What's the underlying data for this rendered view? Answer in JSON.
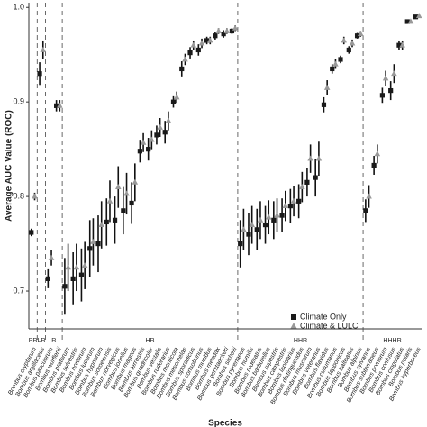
{
  "chart_data": {
    "type": "dot-error",
    "y_label": "Average AUC Value (ROC)",
    "x_label": "Species",
    "categories": [
      "Bombus cryptarum",
      "Bombus argillaceus",
      "Bombus pascuorum",
      "Bombus wurflenii",
      "Bombus pratorum",
      "Bombus sylvestris",
      "Bombus hortorum",
      "Bombus lucorum",
      "Bombus hypnorum",
      "Bombus soroeensis",
      "Bombus norvegicus",
      "Bombus jonellus",
      "Bombus magnus",
      "Bombus terrestris",
      "Bombus quadricolor",
      "Bombus vestalis",
      "Bombus ruderarius",
      "Bombus monticola",
      "Bombus mesomelas",
      "Bombus sporadicus",
      "Bombus consobrinus",
      "Bombus mucidus",
      "Bombus mendax",
      "Bombus gerstaeckeri",
      "Bombus sichelii",
      "Bombus pyrenaeus",
      "Bombus humilis",
      "Bombus ruderatus",
      "Bombus barbutellus",
      "Bombus rupestris",
      "Bombus campestris",
      "Bombus lapidarius",
      "Bombus distinguendus",
      "Bombus muscorum",
      "Bombus veteranus",
      "Bombus flavidus",
      "Bombus cullumanus",
      "Bombus lapponicus",
      "Bombus balteatus",
      "Bombus alpinus",
      "Bombus sylvanus",
      "Bombus subterraneus",
      "Bombus pomorum",
      "Bombus confusus",
      "Bombus cingulatus",
      "Bombus polaris",
      "Bombus hyperboreus"
    ],
    "groups": [
      {
        "name": "PR",
        "count": 1
      },
      {
        "name": "LR",
        "count": 1
      },
      {
        "name": "R",
        "count": 2
      },
      {
        "name": "HR",
        "count": 21
      },
      {
        "name": "HHR",
        "count": 15
      },
      {
        "name": "HHHR",
        "count": 7
      }
    ],
    "series": [
      {
        "name": "Climate Only",
        "marker": "square",
        "color": "#1a1a1a",
        "values": [
          0.762,
          0.93,
          0.713,
          0.896,
          0.705,
          0.713,
          0.717,
          0.745,
          0.75,
          0.773,
          0.775,
          0.785,
          0.793,
          0.848,
          0.85,
          0.865,
          0.868,
          0.9,
          0.935,
          0.952,
          0.955,
          0.965,
          0.97,
          0.972,
          0.975,
          0.75,
          0.76,
          0.765,
          0.77,
          0.775,
          0.78,
          0.79,
          0.795,
          0.815,
          0.82,
          0.897,
          0.935,
          0.945,
          0.955,
          0.97,
          0.785,
          0.833,
          0.907,
          0.912,
          0.96,
          0.985,
          0.99
        ],
        "errors": [
          0.004,
          0.012,
          0.01,
          0.006,
          0.03,
          0.028,
          0.028,
          0.03,
          0.03,
          0.025,
          0.025,
          0.025,
          0.022,
          0.012,
          0.012,
          0.01,
          0.012,
          0.006,
          0.008,
          0.006,
          0.006,
          0.004,
          0.004,
          0.004,
          0.003,
          0.025,
          0.022,
          0.022,
          0.02,
          0.02,
          0.018,
          0.018,
          0.018,
          0.015,
          0.02,
          0.008,
          0.005,
          0.004,
          0.004,
          0.003,
          0.012,
          0.01,
          0.008,
          0.01,
          0.005,
          0.002,
          0.002
        ]
      },
      {
        "name": "Climate & LULC",
        "marker": "triangle",
        "color": "#999999",
        "values": [
          0.8,
          0.955,
          0.735,
          0.896,
          0.725,
          0.725,
          0.727,
          0.752,
          0.77,
          0.795,
          0.81,
          0.803,
          0.815,
          0.857,
          0.86,
          0.873,
          0.88,
          0.905,
          0.945,
          0.96,
          0.962,
          0.965,
          0.975,
          0.975,
          0.978,
          0.765,
          0.77,
          0.775,
          0.778,
          0.78,
          0.79,
          0.795,
          0.81,
          0.84,
          0.84,
          0.915,
          0.94,
          0.965,
          0.962,
          0.972,
          0.8,
          0.845,
          0.925,
          0.93,
          0.96,
          0.985,
          0.991
        ],
        "errors": [
          0.004,
          0.01,
          0.008,
          0.006,
          0.025,
          0.025,
          0.025,
          0.025,
          0.025,
          0.022,
          0.022,
          0.022,
          0.02,
          0.01,
          0.01,
          0.01,
          0.01,
          0.006,
          0.006,
          0.005,
          0.005,
          0.004,
          0.003,
          0.003,
          0.003,
          0.022,
          0.02,
          0.02,
          0.018,
          0.018,
          0.016,
          0.016,
          0.016,
          0.015,
          0.018,
          0.008,
          0.005,
          0.004,
          0.004,
          0.003,
          0.012,
          0.01,
          0.008,
          0.01,
          0.005,
          0.002,
          0.002
        ]
      }
    ],
    "ylim": [
      0.66,
      1.005
    ],
    "yticks": [
      0.7,
      0.8,
      0.9,
      {
        "value": 1,
        "label": "1.0"
      }
    ],
    "legend": "bottom-right"
  }
}
